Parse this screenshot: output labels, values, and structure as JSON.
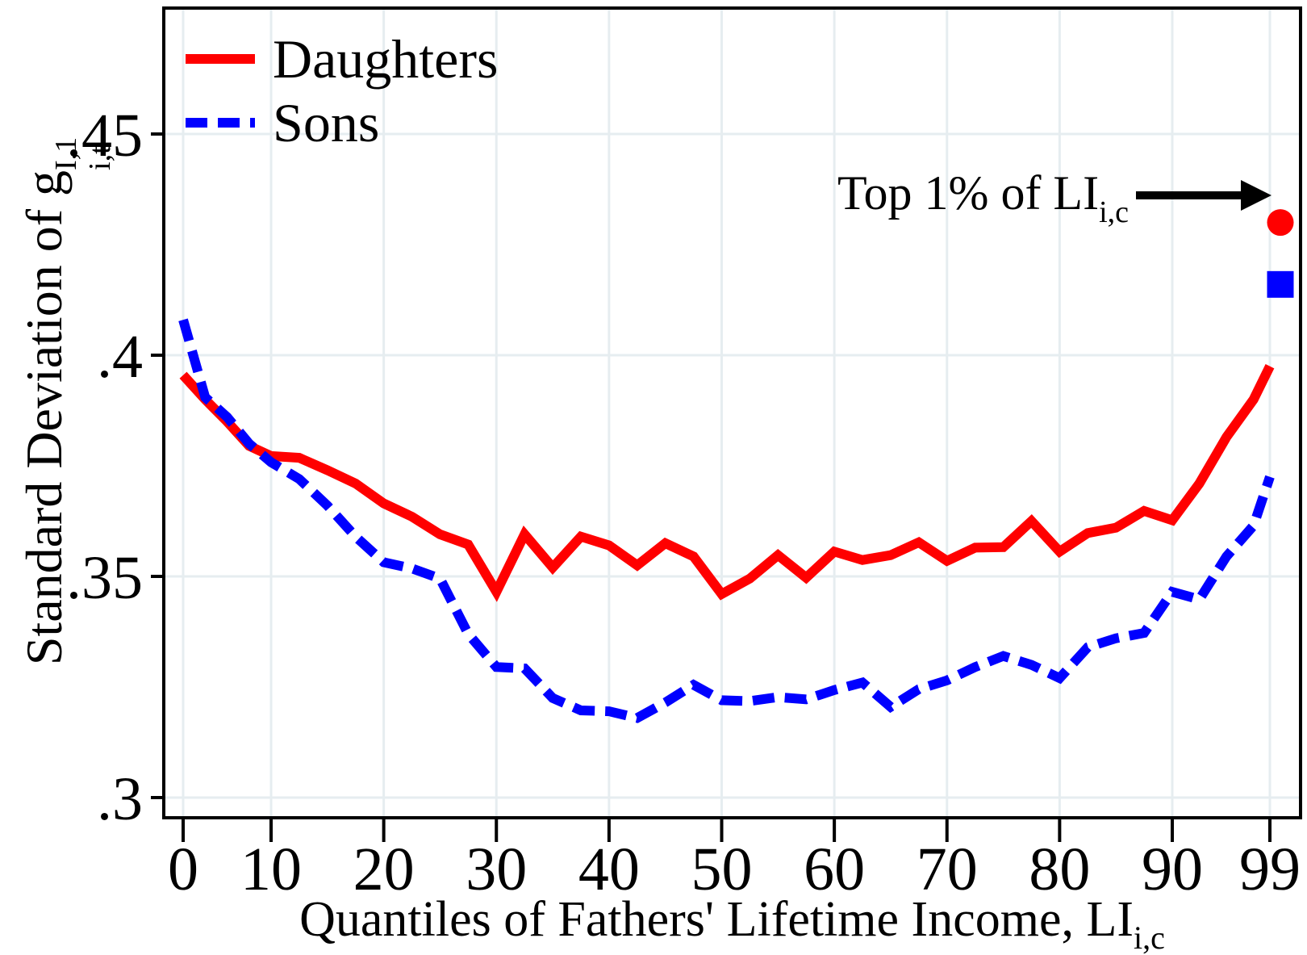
{
  "figure": {
    "legend": {
      "items": [
        {
          "label": "Daughters",
          "color": "#ff0000",
          "style": "solid"
        },
        {
          "label": "Sons",
          "color": "#0000ff",
          "style": "dashed"
        }
      ]
    },
    "y_axis": {
      "title_prefix": "Standard Deviation of g",
      "title_sup": "I,1",
      "title_sub": "i,t",
      "tick_labels": [
        ".3",
        ".35",
        ".4",
        ".45"
      ]
    },
    "x_axis": {
      "title_prefix": "Quantiles of Fathers' Lifetime Income, LI",
      "title_sub": "i,c",
      "tick_labels": [
        "0",
        "10",
        "20",
        "30",
        "40",
        "50",
        "60",
        "70",
        "80",
        "90",
        "99"
      ]
    },
    "annotation": {
      "text": "Top 1% of LI",
      "sub": "i,c"
    },
    "colors": {
      "daughters": "#ff0000",
      "sons": "#0000ff",
      "grid": "#e6edf0",
      "frame": "#000000",
      "background": "#ffffff"
    }
  },
  "chart_data": {
    "type": "line",
    "title": "",
    "xlabel": "Quantiles of Fathers' Lifetime Income, LI_i,c",
    "ylabel": "Standard Deviation of g^I,1_i,t",
    "grid": true,
    "legend_position": "top-left",
    "xticks": [
      0,
      10,
      20,
      30,
      40,
      50,
      60,
      70,
      80,
      90,
      99
    ],
    "yticks": [
      0.3,
      0.35,
      0.4,
      0.45
    ],
    "ylim": [
      0.295,
      0.479
    ],
    "x": [
      0,
      2.5,
      5,
      7.5,
      10,
      12.5,
      15,
      17.5,
      20,
      22.5,
      25,
      27.5,
      30,
      32.5,
      35,
      37.5,
      40,
      42.5,
      45,
      47.5,
      50,
      52.5,
      55,
      57.5,
      60,
      62.5,
      65,
      67.5,
      70,
      72.5,
      75,
      77.5,
      80,
      82.5,
      85,
      87.5,
      90,
      92.5,
      95,
      97.5,
      99
    ],
    "series": [
      {
        "name": "Daughters",
        "color": "#ff0000",
        "dash": "solid",
        "values": [
          0.3955,
          0.39,
          0.385,
          0.3795,
          0.3772,
          0.3768,
          0.374,
          0.371,
          0.3665,
          0.3635,
          0.3595,
          0.3572,
          0.3465,
          0.3595,
          0.352,
          0.359,
          0.357,
          0.3525,
          0.3575,
          0.3545,
          0.346,
          0.3495,
          0.3548,
          0.3497,
          0.3556,
          0.3537,
          0.3548,
          0.3577,
          0.3535,
          0.3565,
          0.3566,
          0.3625,
          0.3556,
          0.3598,
          0.361,
          0.3648,
          0.3627,
          0.371,
          0.3815,
          0.39,
          0.3975
        ],
        "top_1_percent": 0.43,
        "top_1_marker": "circle"
      },
      {
        "name": "Sons",
        "color": "#0000ff",
        "dash": "dashed",
        "values": [
          0.408,
          0.3905,
          0.386,
          0.38,
          0.3758,
          0.372,
          0.366,
          0.359,
          0.3532,
          0.3518,
          0.3495,
          0.337,
          0.3295,
          0.3292,
          0.3225,
          0.3197,
          0.3195,
          0.318,
          0.3215,
          0.3255,
          0.322,
          0.3218,
          0.3227,
          0.3222,
          0.3243,
          0.326,
          0.3205,
          0.3245,
          0.3265,
          0.3295,
          0.332,
          0.33,
          0.327,
          0.334,
          0.336,
          0.3372,
          0.3465,
          0.3448,
          0.3545,
          0.3615,
          0.3725
        ],
        "top_1_percent": 0.416,
        "top_1_marker": "square"
      }
    ]
  }
}
